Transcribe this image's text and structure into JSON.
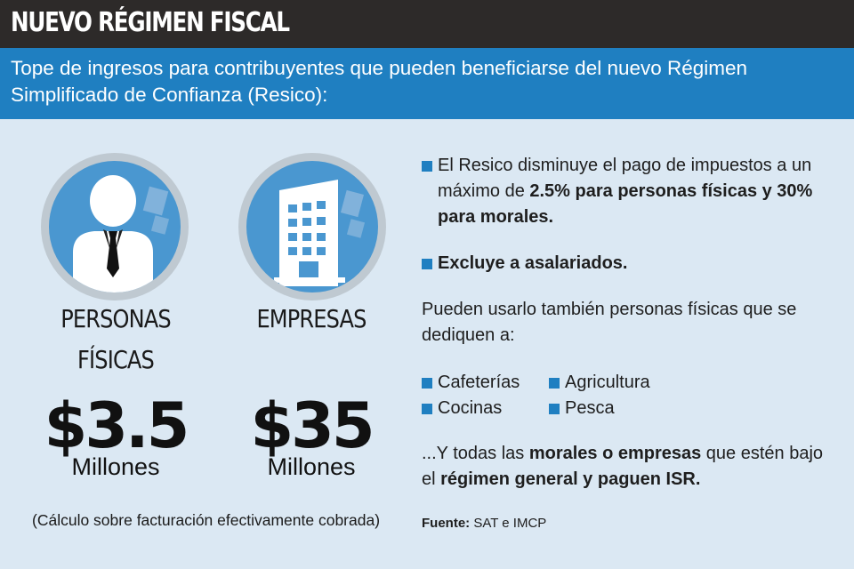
{
  "header": {
    "title": "NUEVO RÉGIMEN FISCAL",
    "subtitle": "Tope de ingresos para contribuyentes que pueden beneficiarse del nuevo Régimen Simplificado de Confianza (Resico):"
  },
  "personas": {
    "icon": "person-icon",
    "title_line1": "PERSONAS",
    "title_line2": "FÍSICAS",
    "amount": "$3.5",
    "unit": "Millones"
  },
  "empresas": {
    "icon": "building-icon",
    "title": "EMPRESAS",
    "amount": "$35",
    "unit": "Millones"
  },
  "note": "(Cálculo sobre facturación efectivamente cobrada)",
  "bullets": {
    "b1_pre": "El Resico disminuye el pago de impuestos a un máximo de ",
    "b1_bold": "2.5% para personas físicas y 30% para morales.",
    "b2": "Excluye a asalariados."
  },
  "also": "Pueden usarlo también personas físicas que se dediquen a:",
  "activities": [
    "Cafeterías",
    "Agricultura",
    "Cocinas",
    "Pesca"
  ],
  "closing": {
    "p1": "...Y todas las ",
    "b1": "morales o empresas",
    "p2": " que estén bajo el ",
    "b2": "régimen general y paguen ISR."
  },
  "source": {
    "label": "Fuente:",
    "value": "SAT e IMCP"
  },
  "colors": {
    "accent": "#1f7fc1",
    "dark": "#2d2a29",
    "background": "#dbe8f3"
  }
}
